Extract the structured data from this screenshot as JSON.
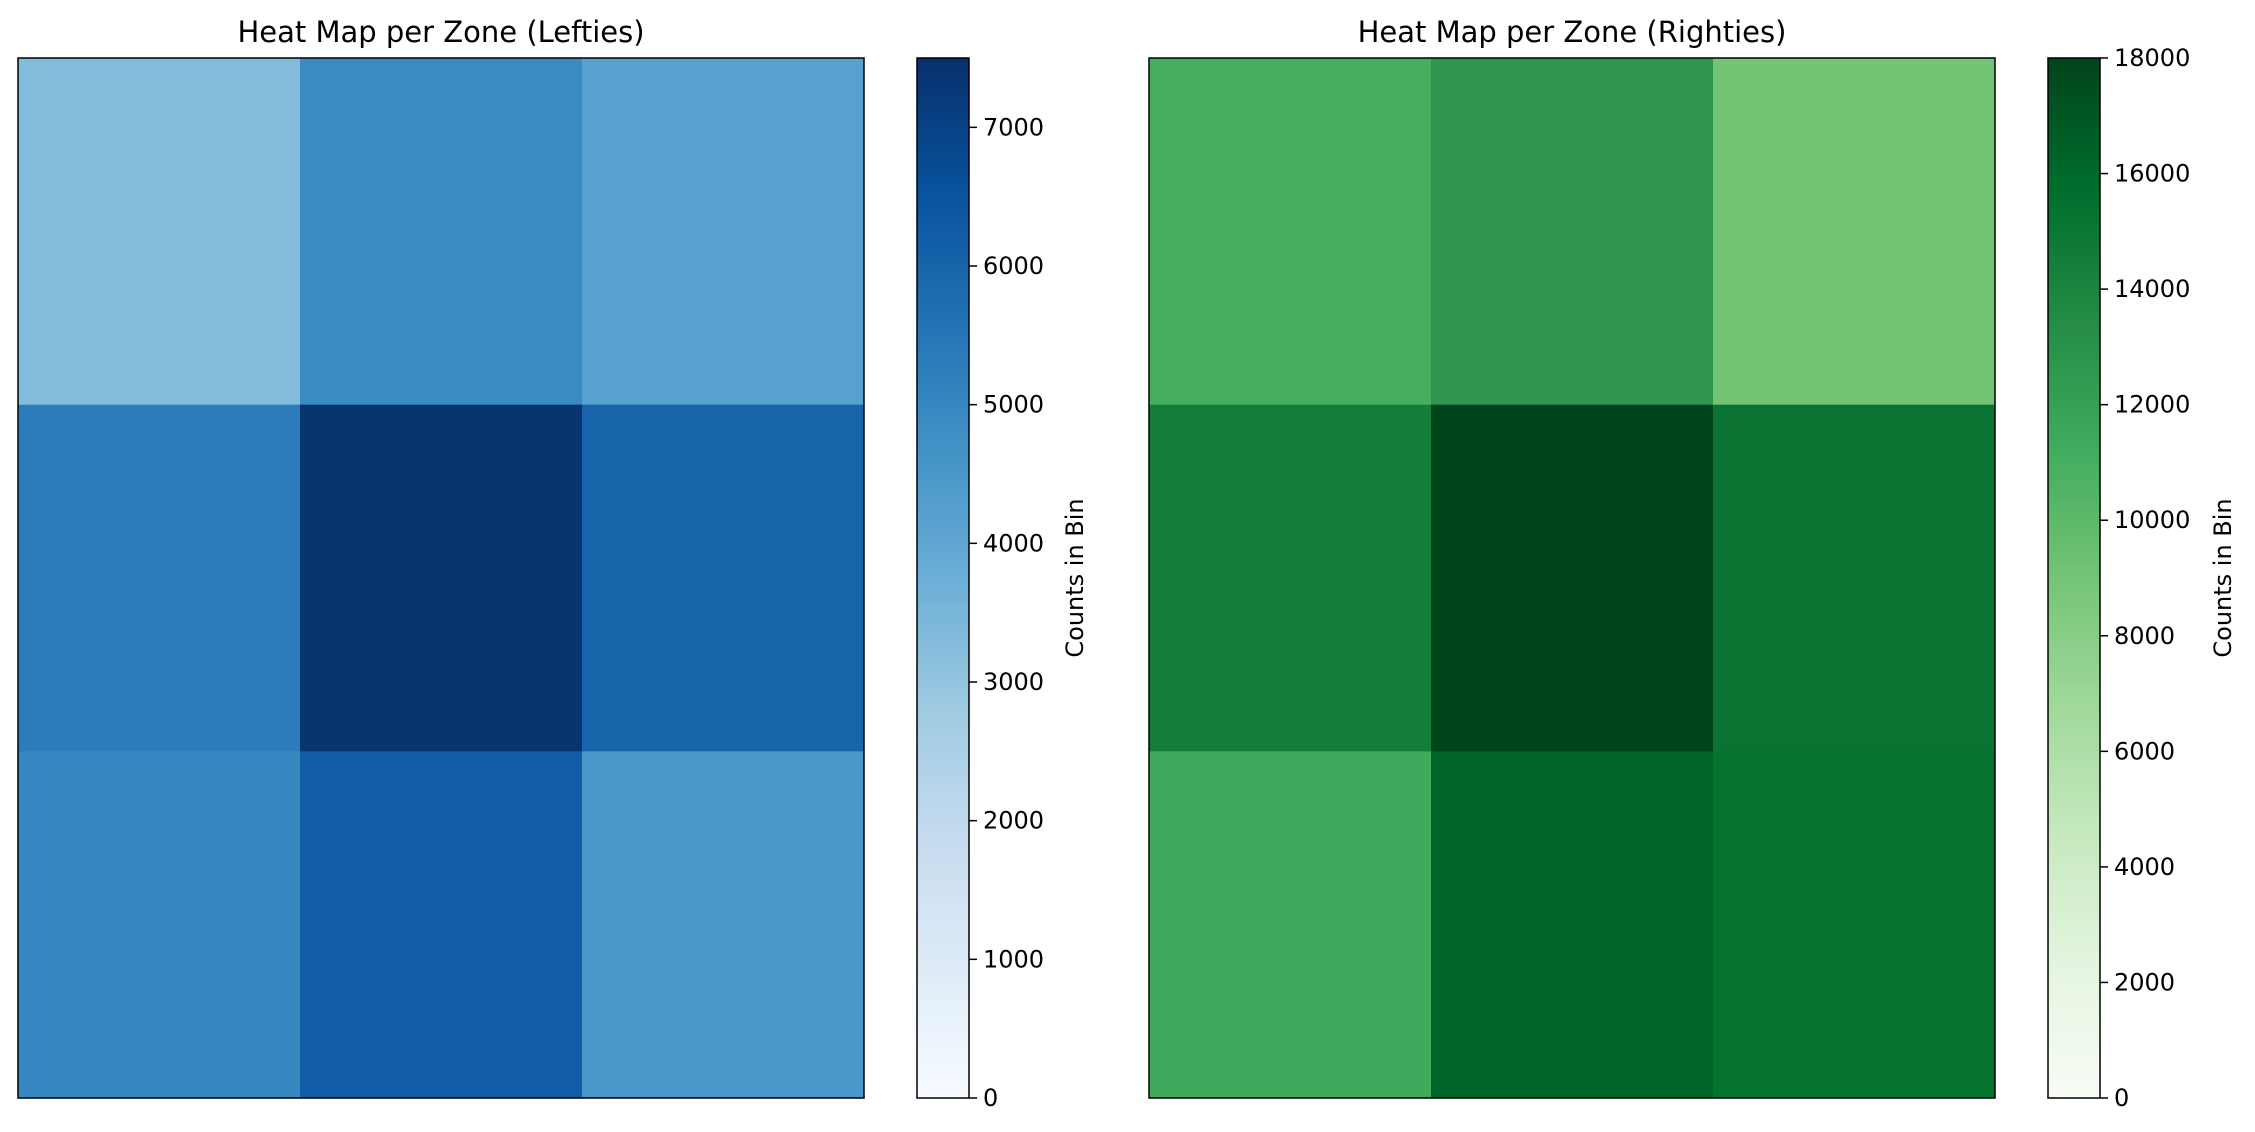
{
  "chart_data": [
    {
      "type": "heatmap",
      "title": "Heat Map per Zone (Lefties)",
      "colormap": "Blues",
      "colorbar_label": "Counts in Bin",
      "vmin": 0,
      "vmax": 7500,
      "colorbar_ticks": [
        "0",
        "1000",
        "2000",
        "3000",
        "4000",
        "5000",
        "6000",
        "7000"
      ],
      "values": [
        [
          3300,
          4900,
          4200
        ],
        [
          5300,
          7400,
          6000
        ],
        [
          5000,
          6200,
          4500
        ]
      ]
    },
    {
      "type": "heatmap",
      "title": "Heat Map per Zone (Righties)",
      "colormap": "Greens",
      "colorbar_label": "Counts in Bin",
      "vmin": 0,
      "vmax": 18000,
      "colorbar_ticks": [
        "0",
        "2000",
        "4000",
        "6000",
        "8000",
        "10000",
        "12000",
        "14000",
        "16000",
        "18000"
      ],
      "values": [
        [
          11000,
          12700,
          9000
        ],
        [
          14500,
          18000,
          15200
        ],
        [
          11300,
          16200,
          15400
        ]
      ]
    }
  ]
}
